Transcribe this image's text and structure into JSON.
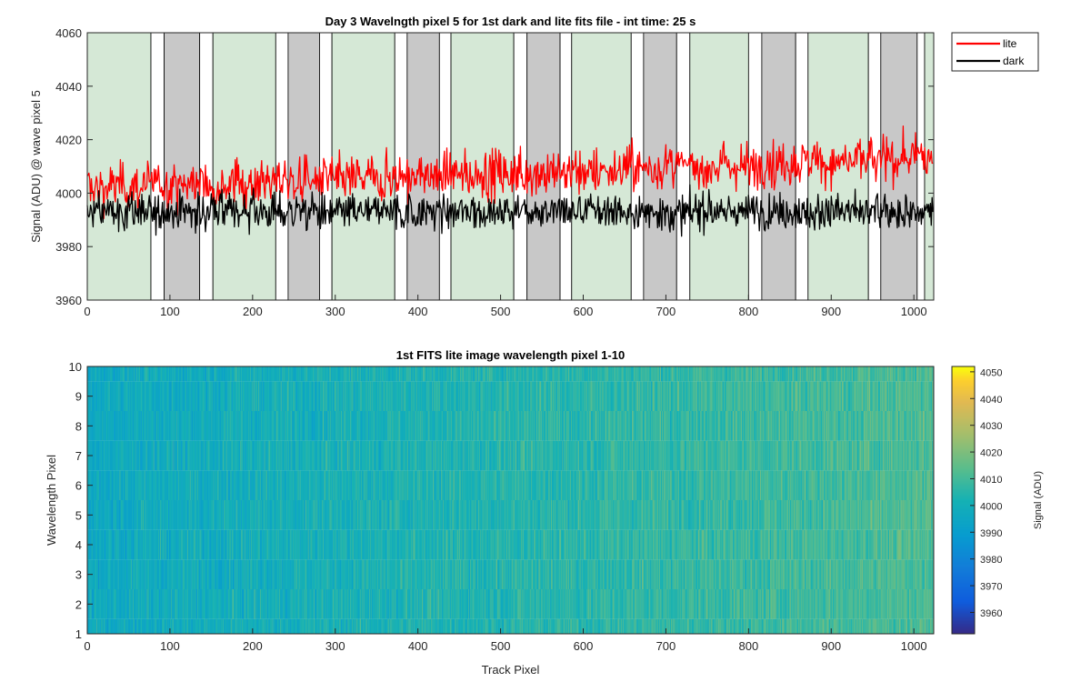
{
  "colors": {
    "lite": "#ff0000",
    "dark": "#000000",
    "green_band": "#d5e8d6",
    "gray_band": "#c8c8c8",
    "axes": "#262626"
  },
  "chart_data": [
    {
      "type": "line",
      "title": "Day 3 Wavelngth pixel 5 for 1st dark and lite fits file - int time: 25 s",
      "xlabel": "",
      "ylabel": "Signal (ADU) @ wave pixel 5",
      "xlim": [
        0,
        1024
      ],
      "ylim": [
        3960,
        4060
      ],
      "xticks": [
        0,
        100,
        200,
        300,
        400,
        500,
        600,
        700,
        800,
        900,
        1000
      ],
      "yticks": [
        3960,
        3980,
        4000,
        4020,
        4040,
        4060
      ],
      "legend": {
        "placement": "outside-top-right",
        "entries": [
          "lite",
          "dark"
        ]
      },
      "series": [
        {
          "name": "lite",
          "color": "#ff0000",
          "samples": 1024,
          "mean_start": 4002,
          "mean_end": 4013,
          "noise_amplitude": 9
        },
        {
          "name": "dark",
          "color": "#000000",
          "samples": 1024,
          "mean": 3993,
          "noise_amplitude": 7
        }
      ],
      "background_bands": [
        {
          "x0": 0,
          "x1": 77,
          "shade": "green"
        },
        {
          "x0": 77,
          "x1": 93,
          "shade": "white"
        },
        {
          "x0": 93,
          "x1": 136,
          "shade": "gray"
        },
        {
          "x0": 136,
          "x1": 152,
          "shade": "white"
        },
        {
          "x0": 152,
          "x1": 228,
          "shade": "green"
        },
        {
          "x0": 228,
          "x1": 243,
          "shade": "white"
        },
        {
          "x0": 243,
          "x1": 281,
          "shade": "gray"
        },
        {
          "x0": 281,
          "x1": 296,
          "shade": "white"
        },
        {
          "x0": 296,
          "x1": 372,
          "shade": "green"
        },
        {
          "x0": 372,
          "x1": 387,
          "shade": "white"
        },
        {
          "x0": 387,
          "x1": 426,
          "shade": "gray"
        },
        {
          "x0": 426,
          "x1": 440,
          "shade": "white"
        },
        {
          "x0": 440,
          "x1": 516,
          "shade": "green"
        },
        {
          "x0": 516,
          "x1": 532,
          "shade": "white"
        },
        {
          "x0": 532,
          "x1": 572,
          "shade": "gray"
        },
        {
          "x0": 572,
          "x1": 586,
          "shade": "white"
        },
        {
          "x0": 586,
          "x1": 658,
          "shade": "green"
        },
        {
          "x0": 658,
          "x1": 673,
          "shade": "white"
        },
        {
          "x0": 673,
          "x1": 713,
          "shade": "gray"
        },
        {
          "x0": 713,
          "x1": 729,
          "shade": "white"
        },
        {
          "x0": 729,
          "x1": 800,
          "shade": "green"
        },
        {
          "x0": 800,
          "x1": 816,
          "shade": "white"
        },
        {
          "x0": 816,
          "x1": 857,
          "shade": "gray"
        },
        {
          "x0": 857,
          "x1": 872,
          "shade": "white"
        },
        {
          "x0": 872,
          "x1": 945,
          "shade": "green"
        },
        {
          "x0": 945,
          "x1": 960,
          "shade": "white"
        },
        {
          "x0": 960,
          "x1": 1004,
          "shade": "gray"
        },
        {
          "x0": 1004,
          "x1": 1013,
          "shade": "white"
        },
        {
          "x0": 1013,
          "x1": 1024,
          "shade": "green"
        }
      ]
    },
    {
      "type": "heatmap",
      "title": "1st FITS lite image wavelength pixel 1-10",
      "xlabel": "Track Pixel",
      "ylabel": "Wavelength Pixel",
      "xlim": [
        0,
        1024
      ],
      "ylim": [
        1,
        10
      ],
      "xticks": [
        0,
        100,
        200,
        300,
        400,
        500,
        600,
        700,
        800,
        900,
        1000
      ],
      "yticks": [
        1,
        2,
        3,
        4,
        5,
        6,
        7,
        8,
        9,
        10
      ],
      "colormap": "parula",
      "colorbar": {
        "label": "Signal (ADU)",
        "range": [
          3952,
          4052
        ],
        "ticks": [
          3960,
          3970,
          3980,
          3990,
          4000,
          4010,
          4020,
          4030,
          4040,
          4050
        ]
      },
      "rows": 10,
      "columns": 1024,
      "mean_start": 3997,
      "mean_end": 4012,
      "noise_amplitude": 10
    }
  ]
}
